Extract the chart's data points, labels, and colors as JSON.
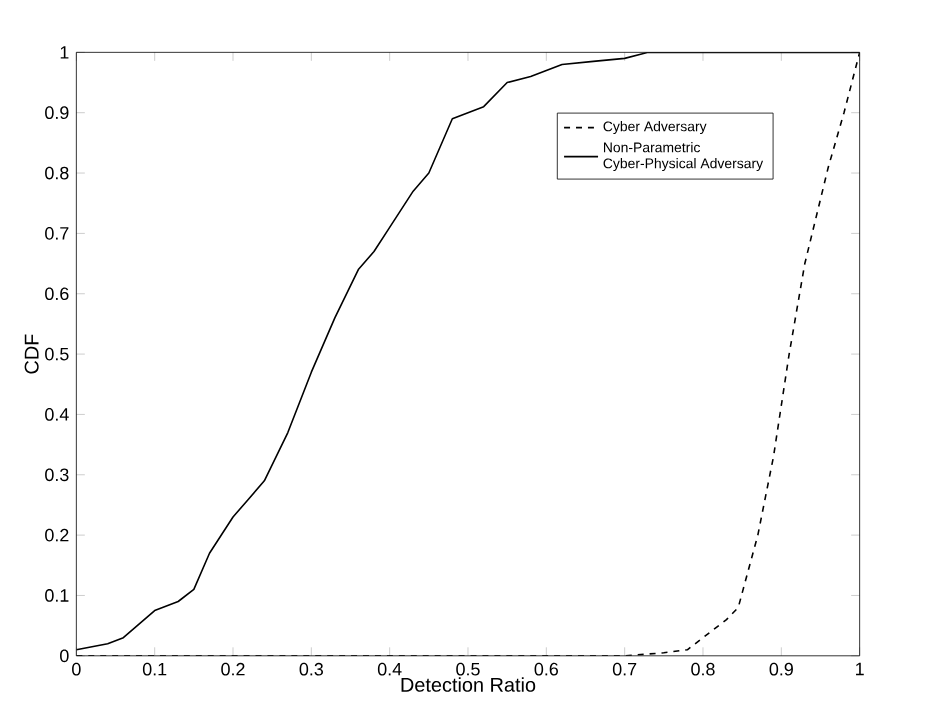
{
  "chart_data": {
    "type": "line",
    "xlabel": "Detection Ratio",
    "ylabel": "CDF",
    "xlim": [
      0,
      1
    ],
    "ylim": [
      0,
      1
    ],
    "xticks": [
      0,
      0.1,
      0.2,
      0.3,
      0.4,
      0.5,
      0.6,
      0.7,
      0.8,
      0.9,
      1
    ],
    "yticks": [
      0,
      0.1,
      0.2,
      0.3,
      0.4,
      0.5,
      0.6,
      0.7,
      0.8,
      0.9,
      1
    ],
    "legend": "top right",
    "grid": false,
    "series": [
      {
        "name": "Cyber Adversary",
        "color": "#000000",
        "line_style": "dashed",
        "x": [
          0,
          0.7,
          0.75,
          0.78,
          0.8,
          0.83,
          0.845,
          0.87,
          0.89,
          0.91,
          0.93,
          0.96,
          0.98,
          1
        ],
        "values": [
          0,
          0,
          0.005,
          0.01,
          0.03,
          0.06,
          0.08,
          0.2,
          0.33,
          0.5,
          0.65,
          0.81,
          0.9,
          1
        ]
      },
      {
        "name": "Non-Parametric\nCyber-Physical Adversary",
        "color": "#000000",
        "line_style": "solid",
        "x": [
          0,
          0.04,
          0.06,
          0.1,
          0.13,
          0.15,
          0.17,
          0.2,
          0.22,
          0.24,
          0.27,
          0.3,
          0.33,
          0.36,
          0.38,
          0.4,
          0.43,
          0.45,
          0.48,
          0.52,
          0.55,
          0.58,
          0.62,
          0.66,
          0.7,
          0.73,
          1
        ],
        "values": [
          0.01,
          0.02,
          0.03,
          0.075,
          0.09,
          0.11,
          0.17,
          0.23,
          0.26,
          0.29,
          0.37,
          0.47,
          0.56,
          0.64,
          0.67,
          0.71,
          0.77,
          0.8,
          0.89,
          0.91,
          0.95,
          0.96,
          0.98,
          0.985,
          0.99,
          1,
          1
        ]
      }
    ]
  }
}
